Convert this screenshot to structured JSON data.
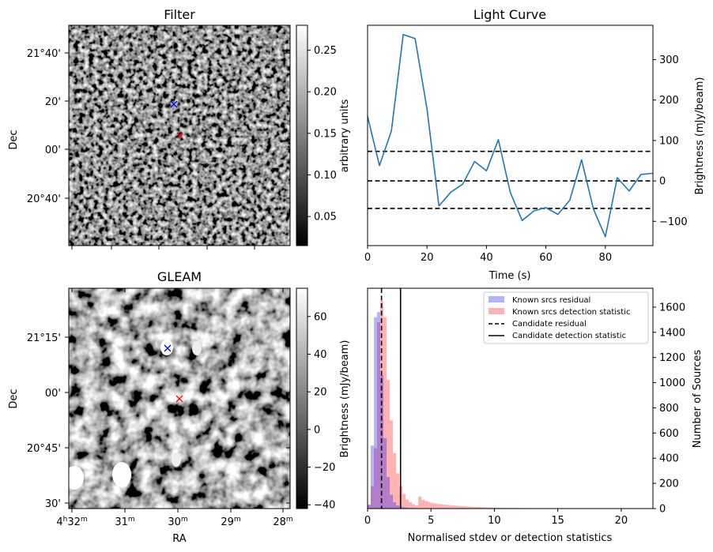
{
  "chart_data": [
    {
      "panel": "filter",
      "type": "heatmap",
      "title": "Filter",
      "ylabel": "Dec",
      "y_ticks": [
        "21°40'",
        "20'",
        "00'",
        "20°40'"
      ],
      "colorbar": {
        "label": "arbitrary units",
        "range": [
          0.015,
          0.28
        ],
        "ticks": [
          "0.25",
          "0.20",
          "0.15",
          "0.10",
          "0.05"
        ],
        "tick_values": [
          0.25,
          0.2,
          0.15,
          0.1,
          0.05
        ],
        "colormap": "gray"
      },
      "markers": [
        {
          "color": "#0000ff",
          "symbol": "x"
        },
        {
          "color": "#ff0000",
          "symbol": "x"
        }
      ]
    },
    {
      "panel": "lightcurve",
      "type": "line",
      "title": "Light Curve",
      "xlabel": "Time (s)",
      "ylabel": "Brightness (mJy/beam)",
      "xlim": [
        0,
        96
      ],
      "ylim": [
        -160,
        385
      ],
      "x_ticks": [
        0,
        20,
        40,
        60,
        80
      ],
      "y_ticks": [
        -100,
        0,
        100,
        200,
        300
      ],
      "series": [
        {
          "color": "#1f77b4",
          "x": [
            0,
            4,
            8,
            12,
            16,
            20,
            24,
            28,
            32,
            36,
            40,
            44,
            48,
            52,
            56,
            60,
            64,
            68,
            72,
            76,
            80,
            84,
            88,
            92,
            96
          ],
          "y": [
            160,
            38,
            123,
            362,
            352,
            178,
            -62,
            -28,
            -8,
            48,
            25,
            102,
            -28,
            -98,
            -74,
            -66,
            -83,
            -48,
            52,
            -70,
            -138,
            8,
            -25,
            16,
            19
          ]
        }
      ],
      "hlines": [
        {
          "y": 73,
          "style": "dashed",
          "color": "#000000"
        },
        {
          "y": 0,
          "style": "dashed",
          "color": "#000000"
        },
        {
          "y": -68,
          "style": "dashed",
          "color": "#000000"
        }
      ]
    },
    {
      "panel": "gleam",
      "type": "heatmap",
      "title": "GLEAM",
      "xlabel": "RA",
      "ylabel": "Dec",
      "x_ticks": [
        "32",
        "31",
        "30",
        "29",
        "28"
      ],
      "x_tick_prefix": "4",
      "x_tick_hour_sup": "h",
      "x_tick_min_sup": "m",
      "y_ticks": [
        "21°15'",
        "00'",
        "20°45'",
        "30'"
      ],
      "colorbar": {
        "label": "Brightness (mJy/beam)",
        "range": [
          -42,
          75
        ],
        "ticks": [
          "60",
          "40",
          "20",
          "0",
          "−20",
          "−40"
        ],
        "tick_values": [
          60,
          40,
          20,
          0,
          -20,
          -40
        ],
        "colormap": "gray"
      },
      "markers": [
        {
          "color": "#0000ff",
          "symbol": "x"
        },
        {
          "color": "#ff0000",
          "symbol": "x"
        }
      ]
    },
    {
      "panel": "histogram",
      "type": "bar",
      "xlabel": "Normalised stdev or detection statistics",
      "ylabel": "Number of Sources",
      "xlim": [
        0,
        22.5
      ],
      "ylim": [
        0,
        1750
      ],
      "x_ticks": [
        0,
        5,
        10,
        15,
        20
      ],
      "y_ticks": [
        0,
        200,
        400,
        600,
        800,
        1000,
        1200,
        1400,
        1600
      ],
      "bin_width": 0.25,
      "legend_position": "upper right",
      "series": [
        {
          "name": "Known srcs residual",
          "color": "#0000ff",
          "alpha": 0.3,
          "values": [
            30,
            500,
            1520,
            1560,
            1060,
            560,
            250,
            110,
            50,
            25,
            15,
            10,
            7,
            5,
            4,
            3,
            2,
            2,
            1,
            1
          ]
        },
        {
          "name": "Known srcs detection statistic",
          "color": "#ff0000",
          "alpha": 0.3,
          "values": [
            30,
            180,
            480,
            1480,
            1650,
            1520,
            1020,
            700,
            440,
            280,
            180,
            115,
            72,
            50,
            35,
            24,
            95,
            70,
            60,
            52,
            45,
            40,
            36,
            33,
            30,
            28,
            26,
            24,
            22,
            20,
            18,
            17,
            15,
            14,
            13,
            12,
            11,
            10,
            9,
            8,
            8,
            7,
            6,
            6,
            5,
            5,
            5,
            4,
            4,
            4,
            3,
            3,
            3,
            3,
            3,
            2,
            2,
            2,
            2,
            2,
            2,
            2,
            2,
            2,
            1,
            1,
            1,
            1,
            1,
            1,
            1,
            1,
            1,
            1,
            1,
            1,
            1,
            1,
            1,
            1
          ]
        }
      ],
      "vlines": [
        {
          "name": "Candidate residual",
          "x": 1.1,
          "style": "dashed",
          "color": "#000000"
        },
        {
          "name": "Candidate detection statistic",
          "x": 2.6,
          "style": "solid",
          "color": "#000000"
        }
      ]
    }
  ]
}
